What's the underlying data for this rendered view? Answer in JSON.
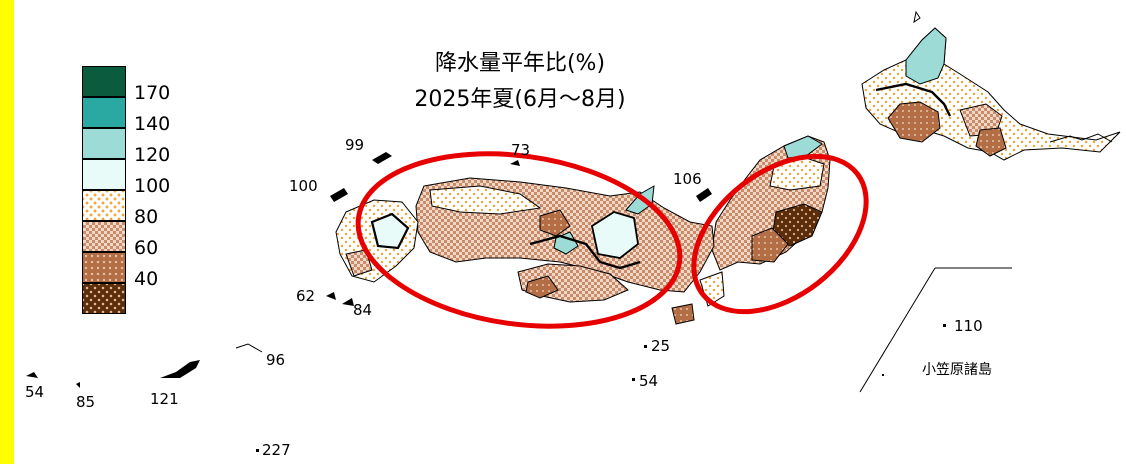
{
  "title": {
    "line1": "降水量平年比(%)",
    "line2": "2025年夏(6月〜8月)"
  },
  "legend": {
    "classes": [
      {
        "label": "170",
        "fill": "dark-teal"
      },
      {
        "label": "140",
        "fill": "teal"
      },
      {
        "label": "120",
        "fill": "light-teal"
      },
      {
        "label": "100",
        "fill": "pale-cyan"
      },
      {
        "label": "80",
        "fill": "orange-dots"
      },
      {
        "label": "60",
        "fill": "brown-checker"
      },
      {
        "label": "40",
        "fill": "brown-dots"
      },
      {
        "label": "",
        "fill": "dark-brown-dots"
      }
    ]
  },
  "station_values": {
    "oki": "99",
    "takeshima": "73",
    "tsushima": "100",
    "sado": "106",
    "goto": "62",
    "koshiki": "84",
    "hachijo": "25",
    "aogashima": "54",
    "tokara": "96",
    "yonaguni": "54",
    "hateruma": "85",
    "miyako": "121",
    "okinotori": "227",
    "chichijima": "110"
  },
  "inset_label": "小笠原諸島",
  "colors": {
    "stripe": "#ffff00",
    "dark_teal": "#0b5b3e",
    "teal": "#2aa9a3",
    "light_teal": "#9ddbd6",
    "pale_cyan": "#e9fbf8",
    "orange_dot": "#f3a233",
    "brown_light": "#deb89e",
    "brown_mid": "#b46e45",
    "dark_brown": "#5a2e0c",
    "annotation_red": "#e60000"
  }
}
